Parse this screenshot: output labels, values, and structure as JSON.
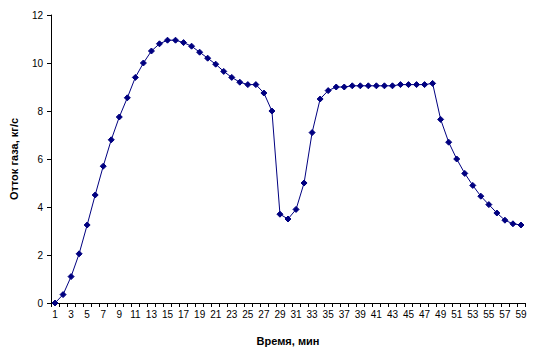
{
  "chart_data": {
    "type": "line",
    "x_label": "Время, мин",
    "y_label": "Отток газа, кг/с",
    "categories": [
      1,
      null,
      3,
      null,
      5,
      null,
      7,
      null,
      9,
      null,
      11,
      null,
      13,
      null,
      15,
      null,
      17,
      null,
      19,
      null,
      21,
      null,
      23,
      null,
      25,
      null,
      27,
      null,
      29,
      null,
      31,
      null,
      33,
      null,
      35,
      null,
      37,
      null,
      39,
      null,
      41,
      null,
      43,
      null,
      45,
      null,
      47,
      null,
      49,
      null,
      51,
      null,
      53,
      null,
      55,
      null,
      57,
      null,
      59
    ],
    "values": [
      0,
      0.35,
      1.1,
      2.05,
      3.25,
      4.5,
      5.7,
      6.8,
      7.75,
      8.55,
      9.4,
      10.0,
      10.5,
      10.8,
      10.95,
      10.95,
      10.85,
      10.7,
      10.45,
      10.2,
      9.95,
      9.65,
      9.4,
      9.2,
      9.1,
      9.1,
      8.75,
      8.0,
      3.7,
      3.5,
      3.9,
      5.0,
      7.1,
      8.5,
      8.85,
      9.0,
      9.0,
      9.05,
      9.05,
      9.05,
      9.05,
      9.05,
      9.05,
      9.1,
      9.1,
      9.1,
      9.1,
      9.15,
      7.65,
      6.7,
      6.0,
      5.4,
      4.9,
      4.45,
      4.1,
      3.75,
      3.45,
      3.3,
      3.25
    ],
    "color": "#000080",
    "marker": "diamond",
    "line_style": "solid",
    "ylim": [
      0,
      12
    ],
    "yticks": [
      0,
      2,
      4,
      6,
      8,
      10,
      12
    ],
    "grid": false
  }
}
